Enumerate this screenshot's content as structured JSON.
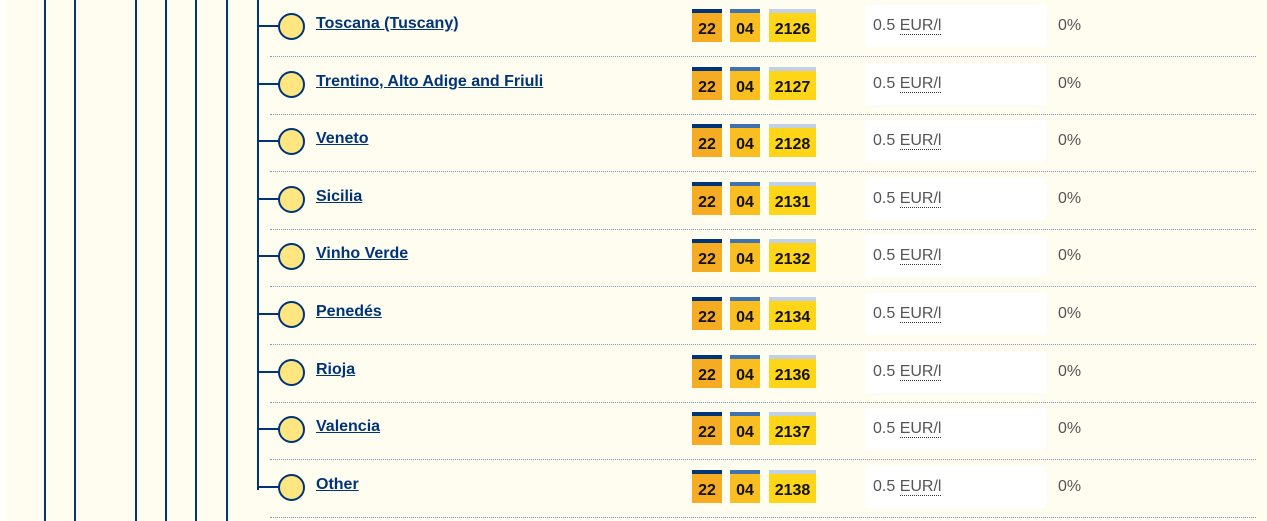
{
  "colors": {
    "line": "#003478",
    "background": "#fffcf0",
    "circle": "#ffe680",
    "code1": "#f6ac22",
    "code2": "#fbbe20",
    "code3": "#ffd617"
  },
  "items": [
    {
      "name": "Toscana (Tuscany)",
      "code1": "22",
      "code2": "04",
      "code3": "2126",
      "value": "0.5",
      "unit": "EUR/l",
      "rate": "0%"
    },
    {
      "name": "Trentino, Alto Adige and Friuli",
      "code1": "22",
      "code2": "04",
      "code3": "2127",
      "value": "0.5",
      "unit": "EUR/l",
      "rate": "0%"
    },
    {
      "name": "Veneto",
      "code1": "22",
      "code2": "04",
      "code3": "2128",
      "value": "0.5",
      "unit": "EUR/l",
      "rate": "0%"
    },
    {
      "name": "Sicilia",
      "code1": "22",
      "code2": "04",
      "code3": "2131",
      "value": "0.5",
      "unit": "EUR/l",
      "rate": "0%"
    },
    {
      "name": "Vinho Verde",
      "code1": "22",
      "code2": "04",
      "code3": "2132",
      "value": "0.5",
      "unit": "EUR/l",
      "rate": "0%"
    },
    {
      "name": "Penedés",
      "code1": "22",
      "code2": "04",
      "code3": "2134",
      "value": "0.5",
      "unit": "EUR/l",
      "rate": "0%"
    },
    {
      "name": "Rioja",
      "code1": "22",
      "code2": "04",
      "code3": "2136",
      "value": "0.5",
      "unit": "EUR/l",
      "rate": "0%"
    },
    {
      "name": "Valencia",
      "code1": "22",
      "code2": "04",
      "code3": "2137",
      "value": "0.5",
      "unit": "EUR/l",
      "rate": "0%"
    },
    {
      "name": "Other",
      "code1": "22",
      "code2": "04",
      "code3": "2138",
      "value": "0.5",
      "unit": "EUR/l",
      "rate": "0%"
    }
  ]
}
